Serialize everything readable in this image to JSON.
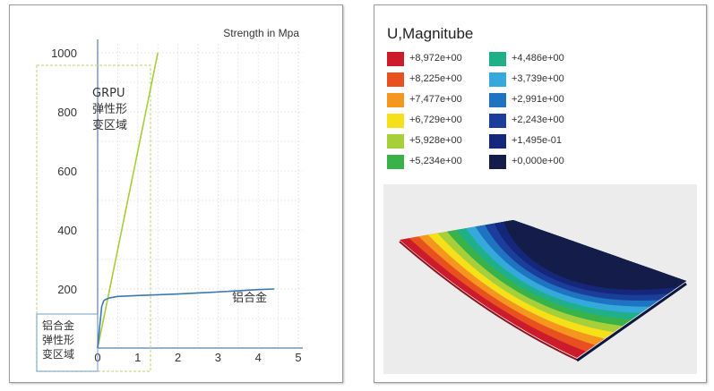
{
  "chart_data": [
    {
      "type": "line",
      "title": "Strength in Mpa",
      "xlabel": "",
      "ylabel": "",
      "xlim": [
        0,
        5
      ],
      "ylim": [
        0,
        1000
      ],
      "x_ticks": [
        "0",
        "1",
        "2",
        "3",
        "4",
        "5"
      ],
      "y_ticks": [
        "200",
        "400",
        "600",
        "800",
        "1000"
      ],
      "grid": true,
      "series": [
        {
          "name": "GRPU",
          "color": "#a8cc3a",
          "x": [
            0,
            1.5
          ],
          "y": [
            0,
            1000
          ]
        },
        {
          "name": "铝合金",
          "color": "#3a78b5",
          "x": [
            0,
            0.05,
            0.1,
            0.15,
            0.2,
            0.3,
            0.5,
            1.0,
            2.0,
            3.0,
            4.0,
            4.4
          ],
          "y": [
            0,
            70,
            140,
            160,
            165,
            170,
            175,
            178,
            183,
            190,
            198,
            200
          ]
        }
      ],
      "annotations": [
        {
          "label": "GRPU\n弹性形\n变区域"
        },
        {
          "label": "铝合金\n弹性形\n变区域"
        },
        {
          "label": "铝合金"
        }
      ]
    },
    {
      "type": "heatmap",
      "title": "U,Magnitube",
      "legend": [
        {
          "label": "+8,972e+00",
          "color": "#cc1b2a"
        },
        {
          "label": "+8,225e+00",
          "color": "#e8501f"
        },
        {
          "label": "+7,477e+00",
          "color": "#f5961e"
        },
        {
          "label": "+6,729e+00",
          "color": "#f5e01a"
        },
        {
          "label": "+5,928e+00",
          "color": "#a6cf3a"
        },
        {
          "label": "+5,234e+00",
          "color": "#3ab24a"
        },
        {
          "label": "+4,486e+00",
          "color": "#1fb08a"
        },
        {
          "label": "+3,739e+00",
          "color": "#35a8dc"
        },
        {
          "label": "+2,991e+00",
          "color": "#1f74c2"
        },
        {
          "label": "+2,243e+00",
          "color": "#1a3e9a"
        },
        {
          "label": "+1,495e-01",
          "color": "#14277a"
        },
        {
          "label": "+0,000e+00",
          "color": "#141d4a"
        }
      ]
    }
  ]
}
